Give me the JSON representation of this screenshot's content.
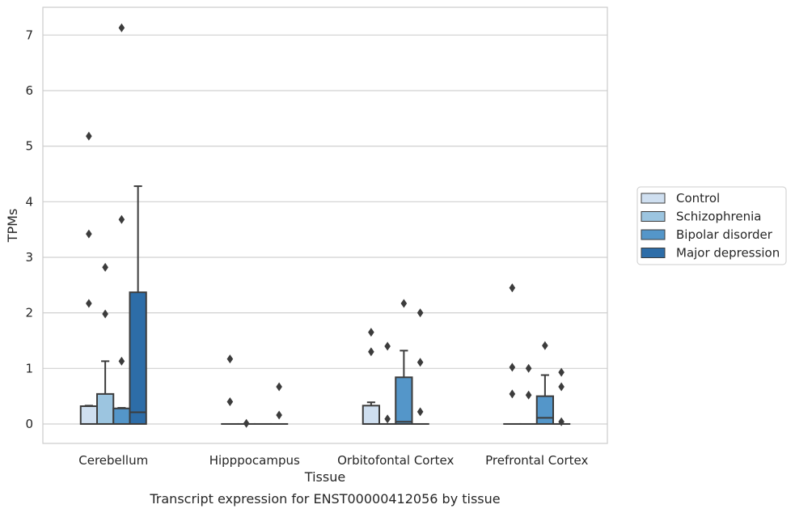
{
  "caption": "Transcript expression for ENST00000412056 by tissue",
  "chart_data": {
    "type": "box",
    "xlabel": "Tissue",
    "ylabel": "TPMs",
    "ylim": [
      -0.35,
      7.5
    ],
    "yticks": [
      0,
      1,
      2,
      3,
      4,
      5,
      6,
      7
    ],
    "grid": "horizontal",
    "legend_position": "right",
    "categories": [
      "Cerebellum",
      "Hipppocampus",
      "Orbitofontal Cortex",
      "Prefrontal Cortex"
    ],
    "series": [
      {
        "name": "Control",
        "color": "#cfdff0",
        "boxes": [
          {
            "q1": 0.0,
            "median": 0.0,
            "q3": 0.32,
            "whisker_low": 0.0,
            "whisker_high": 0.33,
            "fliers": [
              2.17,
              3.42,
              5.18
            ]
          },
          {
            "q1": 0.0,
            "median": 0.0,
            "q3": 0.0,
            "whisker_low": 0.0,
            "whisker_high": 0.0,
            "fliers": [
              0.4,
              1.17
            ]
          },
          {
            "q1": 0.0,
            "median": 0.0,
            "q3": 0.33,
            "whisker_low": 0.0,
            "whisker_high": 0.39,
            "fliers": [
              1.3,
              1.65
            ]
          },
          {
            "q1": 0.0,
            "median": 0.0,
            "q3": 0.0,
            "whisker_low": 0.0,
            "whisker_high": 0.0,
            "fliers": [
              0.54,
              1.02,
              2.45
            ]
          }
        ]
      },
      {
        "name": "Schizophrenia",
        "color": "#9cc5e0",
        "boxes": [
          {
            "q1": 0.0,
            "median": 0.0,
            "q3": 0.54,
            "whisker_low": 0.0,
            "whisker_high": 1.13,
            "fliers": [
              1.98,
              2.82
            ]
          },
          {
            "q1": 0.0,
            "median": 0.0,
            "q3": 0.0,
            "whisker_low": 0.0,
            "whisker_high": 0.0,
            "fliers": [
              0.01
            ]
          },
          {
            "q1": 0.0,
            "median": 0.0,
            "q3": 0.0,
            "whisker_low": 0.0,
            "whisker_high": 0.0,
            "fliers": [
              0.09,
              1.4
            ]
          },
          {
            "q1": 0.0,
            "median": 0.0,
            "q3": 0.0,
            "whisker_low": 0.0,
            "whisker_high": 0.0,
            "fliers": [
              0.52,
              1.0
            ]
          }
        ]
      },
      {
        "name": "Bipolar disorder",
        "color": "#5496c9",
        "boxes": [
          {
            "q1": 0.0,
            "median": 0.0,
            "q3": 0.28,
            "whisker_low": 0.0,
            "whisker_high": 0.29,
            "fliers": [
              1.13,
              3.68,
              7.13
            ]
          },
          {
            "q1": 0.0,
            "median": 0.0,
            "q3": 0.0,
            "whisker_low": 0.0,
            "whisker_high": 0.0,
            "fliers": []
          },
          {
            "q1": 0.0,
            "median": 0.04,
            "q3": 0.84,
            "whisker_low": 0.0,
            "whisker_high": 1.32,
            "fliers": [
              2.17
            ]
          },
          {
            "q1": 0.0,
            "median": 0.11,
            "q3": 0.5,
            "whisker_low": 0.0,
            "whisker_high": 0.88,
            "fliers": [
              1.41
            ]
          }
        ]
      },
      {
        "name": "Major depression",
        "color": "#2d6da8",
        "boxes": [
          {
            "q1": 0.0,
            "median": 0.21,
            "q3": 2.37,
            "whisker_low": 0.0,
            "whisker_high": 4.28,
            "fliers": []
          },
          {
            "q1": 0.0,
            "median": 0.0,
            "q3": 0.0,
            "whisker_low": 0.0,
            "whisker_high": 0.0,
            "fliers": [
              0.16,
              0.67
            ]
          },
          {
            "q1": 0.0,
            "median": 0.0,
            "q3": 0.0,
            "whisker_low": 0.0,
            "whisker_high": 0.0,
            "fliers": [
              0.22,
              1.11,
              2.0
            ]
          },
          {
            "q1": 0.0,
            "median": 0.0,
            "q3": 0.0,
            "whisker_low": 0.0,
            "whisker_high": 0.0,
            "fliers": [
              0.04,
              0.67,
              0.93
            ]
          }
        ]
      }
    ]
  }
}
